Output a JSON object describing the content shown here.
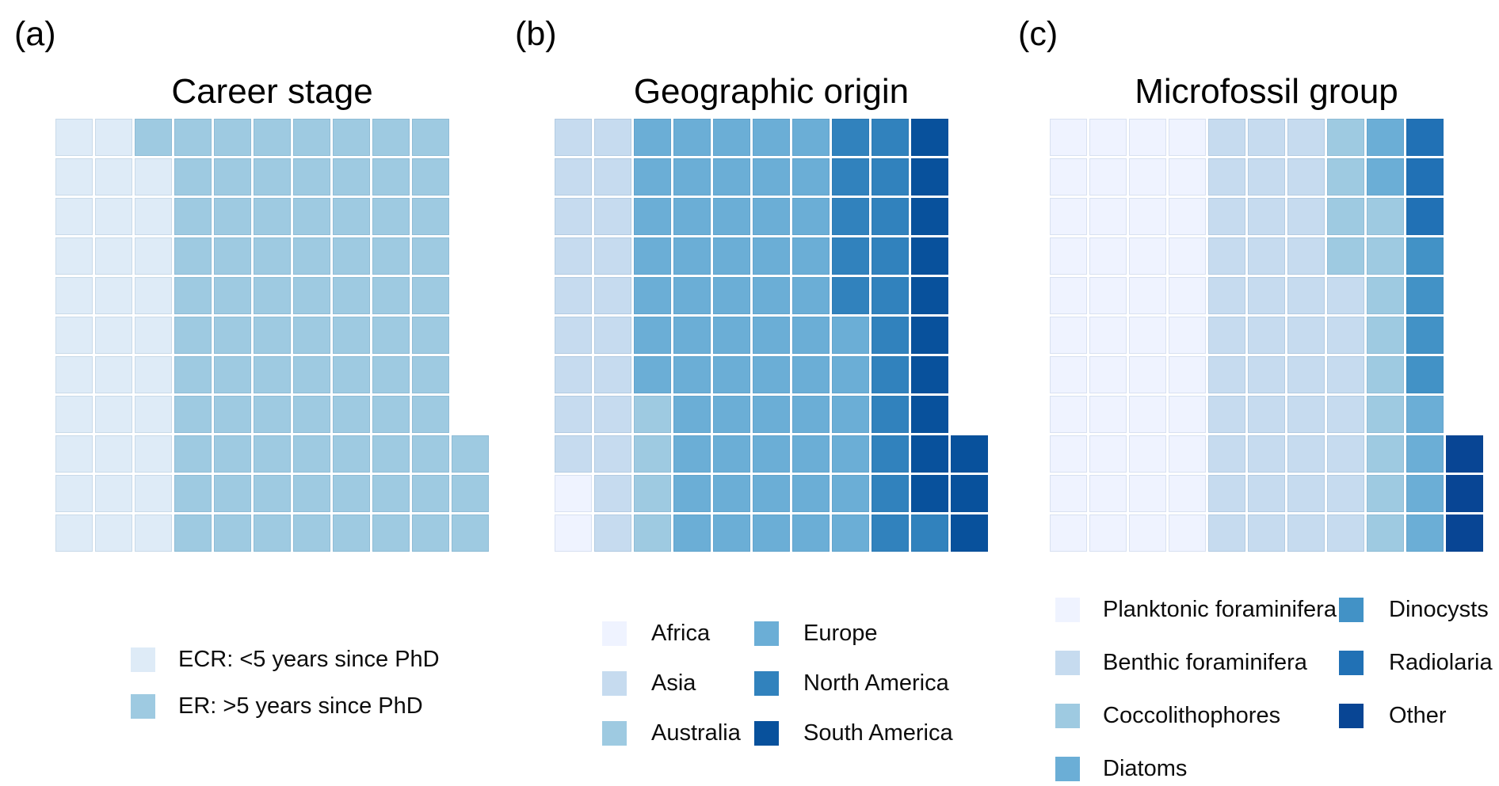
{
  "figure": {
    "background": "#ffffff",
    "gap_color": "#ffffff",
    "total_respondents_per_panel": 113
  },
  "panels": [
    {
      "label": "(a)",
      "title": "Career stage",
      "categories": [
        {
          "key": "E",
          "label": "ECR: <5 years since PhD",
          "color": "#deebf7",
          "count": 32
        },
        {
          "key": "R",
          "label": "ER: >5 years since PhD",
          "color": "#9ecae1",
          "count": 81
        }
      ],
      "legend_columns": [
        [
          "E",
          "R"
        ]
      ],
      "grid_rows": [
        "EERRRRRRRR.",
        "EEERRRRRRR.",
        "EEERRRRRRR.",
        "EEERRRRRRR.",
        "EEERRRRRRR.",
        "EEERRRRRRR.",
        "EEERRRRRRR.",
        "EEERRRRRRR.",
        "EEERRRRRRRR",
        "EEERRRRRRRR",
        "EEERRRRRRRR"
      ]
    },
    {
      "label": "(b)",
      "title": "Geographic origin",
      "categories": [
        {
          "key": "A",
          "label": "Africa",
          "color": "#eff3ff",
          "count": 2
        },
        {
          "key": "S",
          "label": "Asia",
          "color": "#c6dbef",
          "count": 20
        },
        {
          "key": "U",
          "label": "Australia",
          "color": "#9ecae1",
          "count": 4
        },
        {
          "key": "E",
          "label": "Europe",
          "color": "#6baed6",
          "count": 57
        },
        {
          "key": "N",
          "label": "North America",
          "color": "#3182bd",
          "count": 17
        },
        {
          "key": "M",
          "label": "South America",
          "color": "#08519c",
          "count": 13
        }
      ],
      "legend_columns": [
        [
          "A",
          "S",
          "U"
        ],
        [
          "E",
          "N",
          "M"
        ]
      ],
      "grid_rows": [
        "SSEEEEENNM.",
        "SSEEEEENNM.",
        "SSEEEEENNM.",
        "SSEEEEENNM.",
        "SSEEEEENNM.",
        "SSEEEEEENM.",
        "SSEEEEEENM.",
        "SSUEEEEENM.",
        "SSUEEEEENMM",
        "ASUEEEEENMM",
        "ASUEEEEENNM"
      ]
    },
    {
      "label": "(c)",
      "title": "Microfossil group",
      "categories": [
        {
          "key": "P",
          "label": "Planktonic foraminifera",
          "color": "#eff3ff",
          "count": 44
        },
        {
          "key": "B",
          "label": "Benthic foraminifera",
          "color": "#c6dbef",
          "count": 40
        },
        {
          "key": "C",
          "label": "Coccolithophores",
          "color": "#9ecae1",
          "count": 13
        },
        {
          "key": "D",
          "label": "Diatoms",
          "color": "#6baed6",
          "count": 6
        },
        {
          "key": "Y",
          "label": "Dinocysts",
          "color": "#4292c6",
          "count": 4
        },
        {
          "key": "R",
          "label": "Radiolaria",
          "color": "#2171b5",
          "count": 3
        },
        {
          "key": "T",
          "label": "Other",
          "color": "#084594",
          "count": 3
        }
      ],
      "legend_columns": [
        [
          "P",
          "B",
          "C",
          "D"
        ],
        [
          "Y",
          "R",
          "T"
        ]
      ],
      "grid_rows": [
        "PPPPBBBCDR.",
        "PPPPBBBCDR.",
        "PPPPBBBCCR.",
        "PPPPBBBCCY.",
        "PPPPBBBBCY.",
        "PPPPBBBBCY.",
        "PPPPBBBBCY.",
        "PPPPBBBBCD.",
        "PPPPBBBBCDT",
        "PPPPBBBBCDT",
        "PPPPBBBBCDT"
      ]
    }
  ],
  "chart_data": [
    {
      "type": "waffle",
      "title": "Career stage",
      "categories": [
        "ECR: <5 years since PhD",
        "ER: >5 years since PhD"
      ],
      "values": [
        32,
        81
      ],
      "total": 113,
      "grid": "11 rows x 10 columns plus 3 extra cells (rows 9-11, column 11), filled column-major bottom-up",
      "legend_position": "below"
    },
    {
      "type": "waffle",
      "title": "Geographic origin",
      "categories": [
        "Africa",
        "Asia",
        "Australia",
        "Europe",
        "North America",
        "South America"
      ],
      "values": [
        2,
        20,
        4,
        57,
        17,
        13
      ],
      "total": 113,
      "grid": "11 rows x 10 columns plus 3 extra cells (rows 9-11, column 11), filled column-major bottom-up",
      "legend_position": "below, two columns"
    },
    {
      "type": "waffle",
      "title": "Microfossil group",
      "categories": [
        "Planktonic foraminifera",
        "Benthic foraminifera",
        "Coccolithophores",
        "Diatoms",
        "Dinocysts",
        "Radiolaria",
        "Other"
      ],
      "values": [
        44,
        40,
        13,
        6,
        4,
        3,
        3
      ],
      "total": 113,
      "grid": "11 rows x 10 columns plus 3 extra cells (rows 9-11, column 11), filled column-major bottom-up",
      "legend_position": "below, two columns"
    }
  ]
}
